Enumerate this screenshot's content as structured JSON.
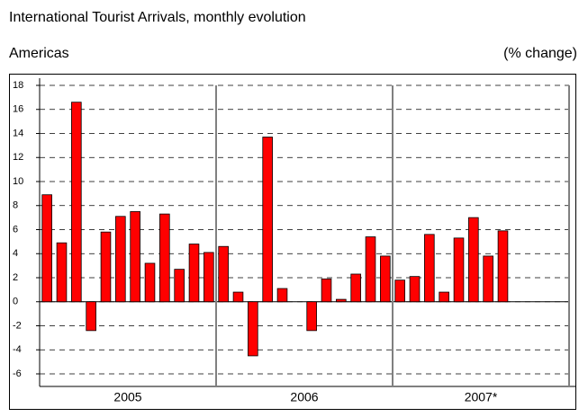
{
  "chart_data": {
    "type": "bar",
    "title": "International Tourist Arrivals, monthly evolution",
    "subtitle": "Americas",
    "unit_label": "(% change)",
    "color": "#ff0000",
    "months_per_group": 12,
    "groups": [
      {
        "name": "2005",
        "values": [
          8.9,
          4.9,
          16.6,
          -2.4,
          5.8,
          7.1,
          7.5,
          3.2,
          7.3,
          2.7,
          4.8,
          4.1
        ]
      },
      {
        "name": "2006",
        "values": [
          4.6,
          0.8,
          -4.5,
          13.7,
          1.1,
          null,
          -2.4,
          1.9,
          0.2,
          2.3,
          5.4,
          3.8
        ]
      },
      {
        "name": "2007*",
        "values": [
          1.8,
          2.1,
          5.6,
          0.8,
          5.3,
          7.0,
          3.8,
          5.9
        ]
      }
    ],
    "ylim": [
      -6,
      18
    ],
    "yticks": [
      -6,
      -4,
      -2,
      0,
      2,
      4,
      6,
      8,
      10,
      12,
      14,
      16,
      18
    ],
    "grid": true
  }
}
